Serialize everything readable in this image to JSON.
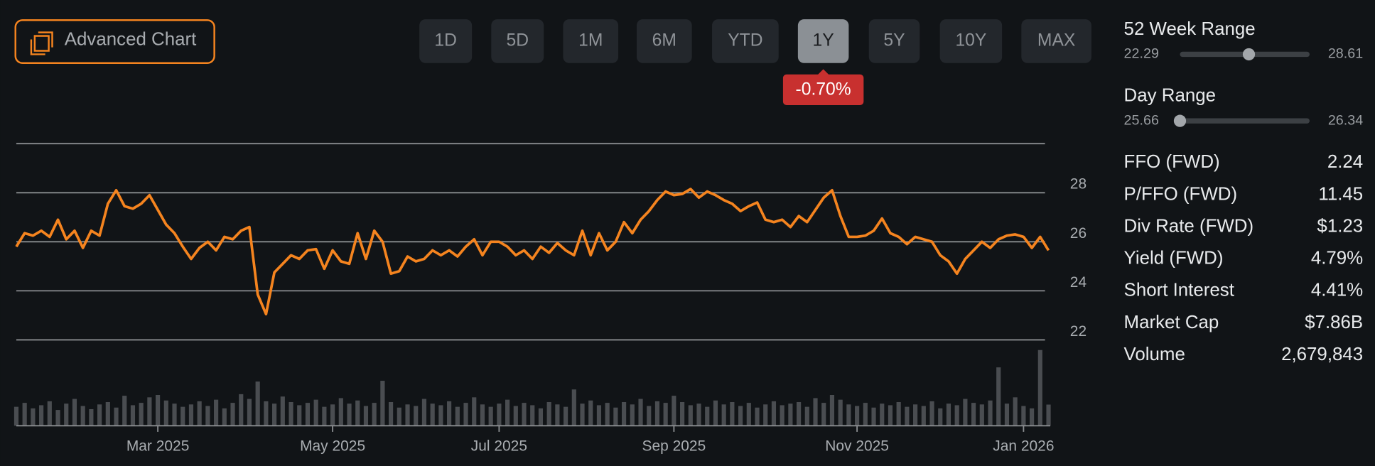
{
  "toolbar": {
    "advanced_chart": "Advanced Chart",
    "ranges": [
      "1D",
      "5D",
      "1M",
      "6M",
      "YTD",
      "1Y",
      "5Y",
      "10Y",
      "MAX"
    ],
    "selected_index": 5,
    "change": "-0.70%"
  },
  "range_panels": [
    {
      "label": "52 Week Range",
      "low": 22.29,
      "high": 28.61,
      "marker": 25.65
    },
    {
      "label": "Day Range",
      "low": 25.66,
      "high": 26.34,
      "marker": 25.66
    }
  ],
  "stats": [
    [
      "FFO (FWD)",
      "2.24"
    ],
    [
      "P/FFO (FWD)",
      "11.45"
    ],
    [
      "Div Rate (FWD)",
      "$1.23"
    ],
    [
      "Yield (FWD)",
      "4.79%"
    ],
    [
      "Short Interest",
      "4.41%"
    ],
    [
      "Market Cap",
      "$7.86B"
    ],
    [
      "Volume",
      "2,679,843"
    ]
  ],
  "chart_data": {
    "type": "line",
    "categories": [
      null,
      null,
      null,
      null,
      null,
      null,
      null,
      null,
      null,
      null,
      null,
      null,
      null,
      null,
      null,
      null,
      null,
      "Mar 2025",
      null,
      null,
      null,
      null,
      null,
      null,
      null,
      null,
      null,
      null,
      null,
      null,
      null,
      null,
      null,
      null,
      null,
      null,
      null,
      null,
      "May 2025",
      null,
      null,
      null,
      null,
      null,
      null,
      null,
      null,
      null,
      null,
      null,
      null,
      null,
      null,
      null,
      null,
      null,
      null,
      null,
      "Jul 2025",
      null,
      null,
      null,
      null,
      null,
      null,
      null,
      null,
      null,
      null,
      null,
      null,
      null,
      null,
      null,
      null,
      null,
      null,
      null,
      null,
      "Sep 2025",
      null,
      null,
      null,
      null,
      null,
      null,
      null,
      null,
      null,
      null,
      null,
      null,
      null,
      null,
      null,
      null,
      null,
      null,
      null,
      null,
      null,
      "Nov 2025",
      null,
      null,
      null,
      null,
      null,
      null,
      null,
      null,
      null,
      null,
      null,
      null,
      null,
      null,
      null,
      null,
      null,
      null,
      null,
      "Jan 2026",
      null,
      null,
      null
    ],
    "series": [
      {
        "color": "#f5841f",
        "values": [
          25.8,
          26.35,
          26.25,
          26.45,
          26.2,
          26.9,
          26.1,
          26.45,
          25.75,
          26.45,
          26.25,
          27.55,
          28.1,
          27.45,
          27.35,
          27.55,
          27.9,
          27.3,
          26.7,
          26.35,
          25.8,
          25.3,
          25.75,
          26.0,
          25.65,
          26.2,
          26.1,
          26.45,
          26.6,
          23.85,
          23.05,
          24.75,
          25.1,
          25.45,
          25.3,
          25.65,
          25.7,
          24.9,
          25.65,
          25.2,
          25.1,
          26.35,
          25.3,
          26.45,
          26.0,
          24.7,
          24.8,
          25.4,
          25.2,
          25.3,
          25.65,
          25.45,
          25.65,
          25.4,
          25.8,
          26.1,
          25.45,
          26.0,
          26.0,
          25.8,
          25.45,
          25.65,
          25.3,
          25.8,
          25.55,
          25.95,
          25.65,
          25.45,
          26.45,
          25.45,
          26.35,
          25.65,
          26.0,
          26.8,
          26.35,
          26.9,
          27.25,
          27.7,
          28.05,
          27.9,
          27.95,
          28.15,
          27.8,
          28.05,
          27.9,
          27.7,
          27.55,
          27.25,
          27.45,
          27.6,
          26.9,
          26.8,
          26.9,
          26.6,
          27.05,
          26.8,
          27.3,
          27.8,
          28.1,
          27.05,
          26.2,
          26.2,
          26.25,
          26.45,
          26.95,
          26.35,
          26.2,
          25.9,
          26.2,
          26.1,
          26.0,
          25.45,
          25.2,
          24.7,
          25.3,
          25.65,
          26.0,
          25.75,
          26.1,
          26.25,
          26.3,
          26.2,
          25.75,
          26.2,
          25.65
        ]
      },
      {
        "type": "bar",
        "axis": "y2",
        "color": "#4a4d51",
        "values": [
          2.4,
          2.9,
          2.2,
          2.6,
          3.1,
          2.0,
          2.8,
          3.4,
          2.5,
          2.1,
          2.7,
          3.0,
          2.3,
          3.8,
          2.6,
          2.9,
          3.6,
          3.9,
          3.2,
          2.8,
          2.4,
          2.7,
          3.1,
          2.5,
          3.3,
          2.2,
          2.9,
          4.0,
          3.4,
          5.6,
          3.1,
          2.8,
          3.7,
          3.0,
          2.6,
          2.9,
          3.3,
          2.4,
          2.7,
          3.5,
          2.8,
          3.2,
          2.5,
          2.9,
          5.7,
          3.0,
          2.3,
          2.7,
          2.5,
          3.4,
          2.8,
          2.6,
          3.1,
          2.4,
          2.9,
          3.6,
          2.7,
          2.4,
          2.8,
          3.3,
          2.5,
          2.9,
          2.6,
          2.2,
          3.0,
          2.7,
          2.4,
          4.6,
          2.8,
          3.2,
          2.6,
          2.9,
          2.3,
          3.0,
          2.7,
          3.4,
          2.5,
          3.1,
          2.9,
          3.8,
          3.0,
          2.6,
          2.8,
          2.4,
          3.2,
          2.7,
          3.0,
          2.5,
          2.9,
          2.3,
          2.7,
          3.1,
          2.6,
          2.8,
          3.0,
          2.4,
          3.5,
          2.9,
          3.9,
          3.3,
          2.7,
          2.5,
          2.9,
          2.3,
          2.8,
          2.6,
          3.0,
          2.4,
          2.7,
          2.5,
          3.1,
          2.2,
          2.8,
          2.6,
          3.4,
          2.9,
          2.7,
          3.2,
          7.4,
          2.8,
          3.6,
          2.5,
          2.2,
          9.6,
          2.68
        ]
      }
    ],
    "ylim": [
      22,
      30
    ],
    "yticks": [
      22,
      24,
      26,
      28
    ],
    "y2lim": [
      0,
      10
    ],
    "grid": true
  }
}
